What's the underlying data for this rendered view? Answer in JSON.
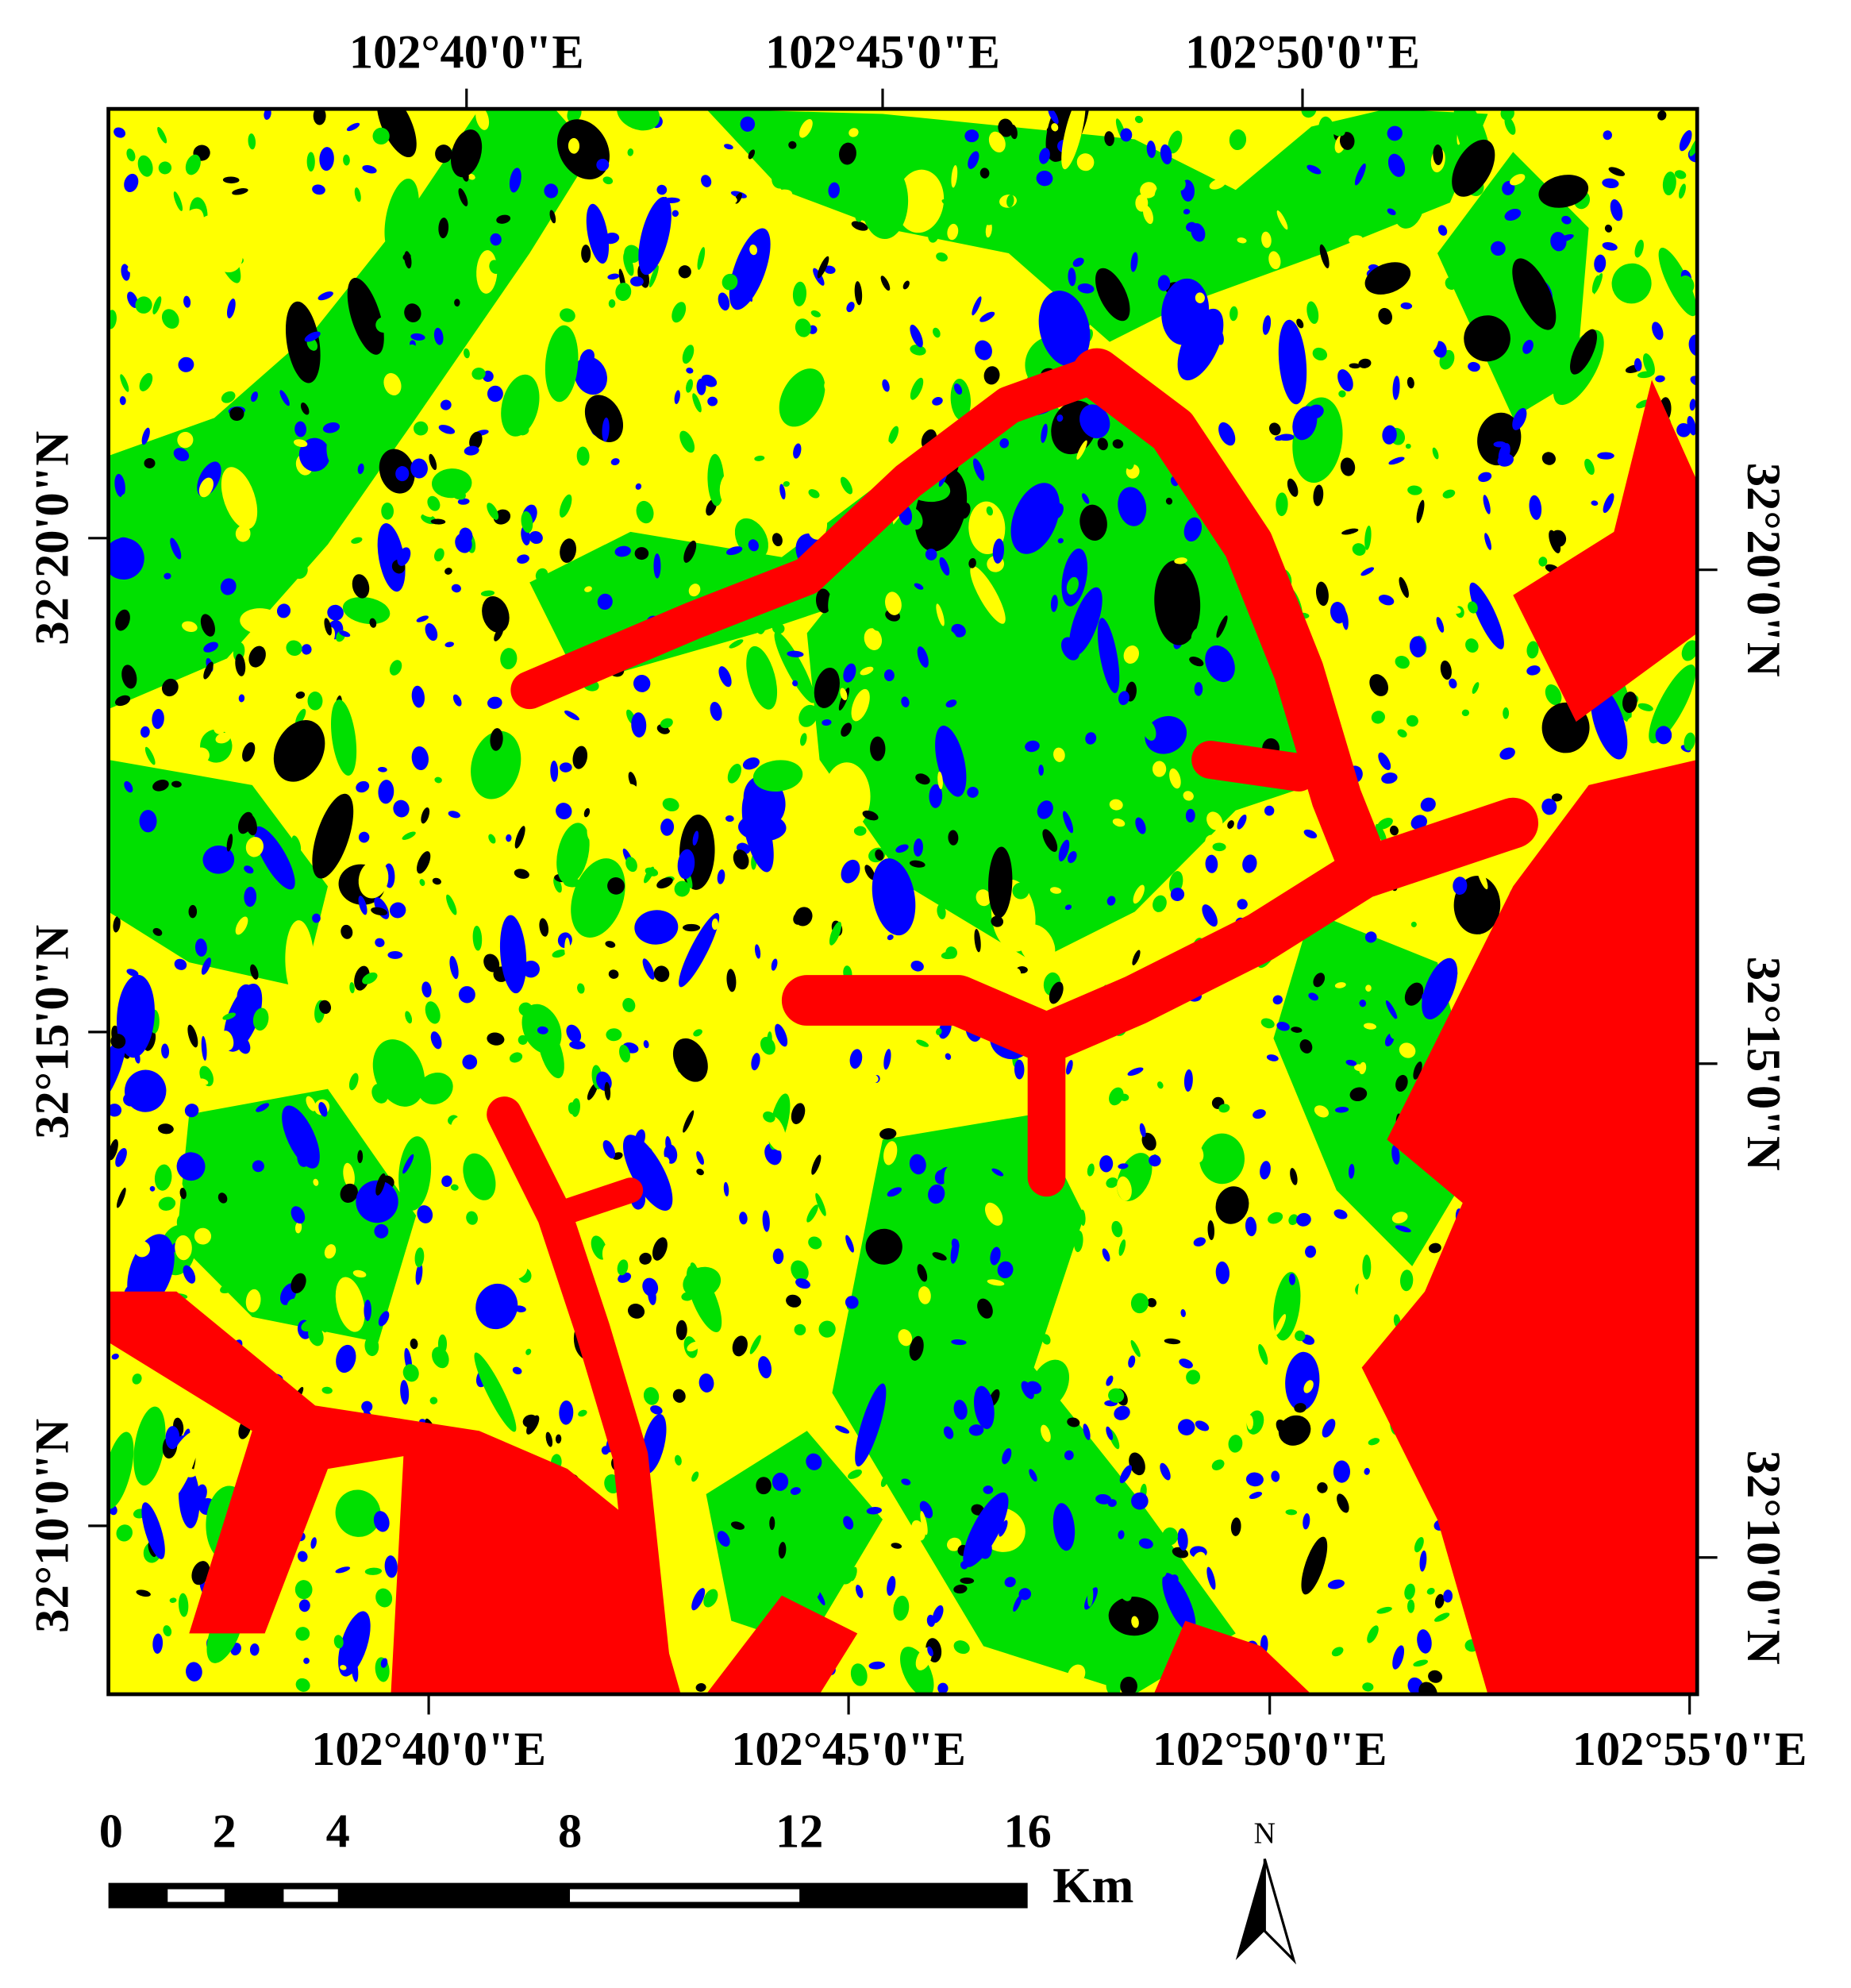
{
  "map": {
    "top_longitude_labels": [
      "102°40'0\"E",
      "102°45'0\"E",
      "102°50'0\"E"
    ],
    "bottom_longitude_labels": [
      "102°40'0\"E",
      "102°45'0\"E",
      "102°50'0\"E",
      "102°55'0\"E"
    ],
    "left_latitude_labels": [
      "32°20'0\"N",
      "32°15'0\"N",
      "32°10'0\"N"
    ],
    "right_latitude_labels": [
      "32°20'0\"N",
      "32°15'0\"N",
      "32°10'0\"N"
    ],
    "scale_bar": {
      "labels": [
        "0",
        "2",
        "4",
        "8",
        "12",
        "16"
      ],
      "unit": "Km"
    },
    "north_arrow": "N"
  }
}
